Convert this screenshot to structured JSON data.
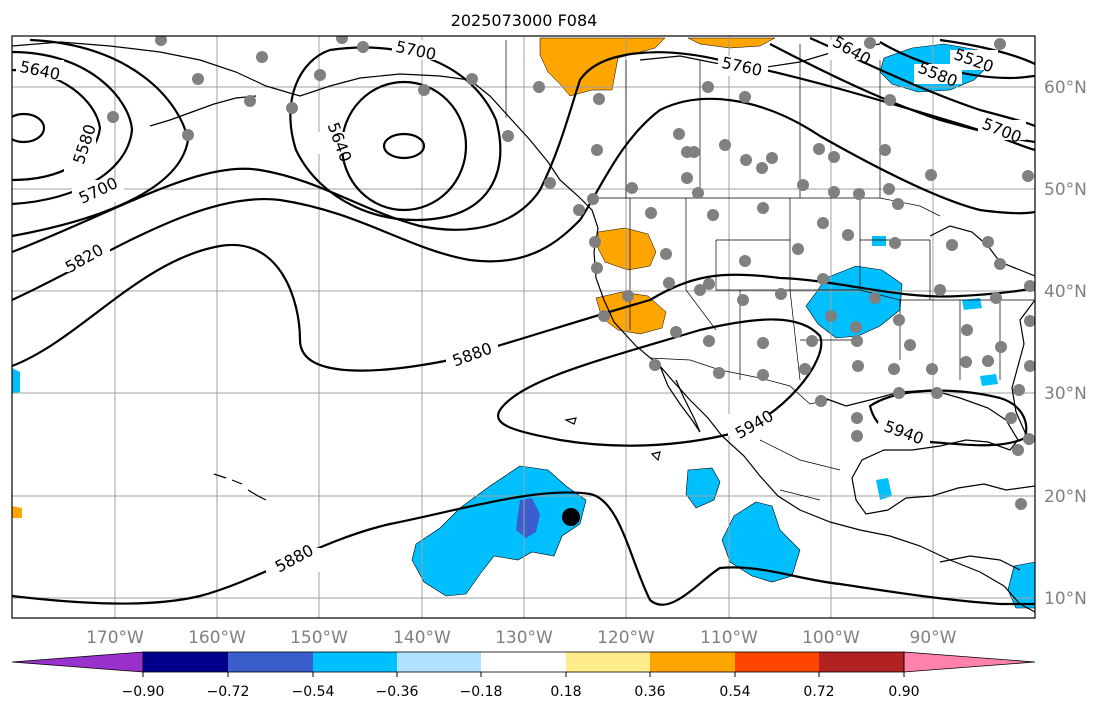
{
  "title": "2025073000 F084",
  "axes": {
    "lon_labels": [
      "170°W",
      "160°W",
      "150°W",
      "140°W",
      "130°W",
      "120°W",
      "110°W",
      "100°W",
      "90°W"
    ],
    "lat_labels": [
      "60°N",
      "50°N",
      "40°N",
      "30°N",
      "20°N",
      "10°N"
    ],
    "lon_range": [
      -180,
      -80
    ],
    "lat_range": [
      8,
      65
    ],
    "grid": true,
    "tick_color": "#808080"
  },
  "colorbar": {
    "tick_labels": [
      "−0.90",
      "−0.72",
      "−0.54",
      "−0.36",
      "−0.18",
      "0.18",
      "0.36",
      "0.54",
      "0.72",
      "0.90"
    ],
    "colors": [
      "#9932CC",
      "#00008B",
      "#3A5FCD",
      "#00BFFF",
      "#B0E2FF",
      "#FFFFFF",
      "#FFEC8B",
      "#FFA500",
      "#FF4500",
      "#B22222",
      "#FF82AB"
    ],
    "extend": "both"
  },
  "contour_labels": {
    "c1": "5640",
    "c2": "5700",
    "c3": "5640",
    "c4": "5760",
    "c5": "5640",
    "c6": "5520",
    "c7": "5580",
    "c8": "5700",
    "c9": "5580",
    "c10": "5700",
    "c11": "5820",
    "c12": "5880",
    "c13": "5940",
    "c14": "5940",
    "c15": "5880"
  },
  "chart_data": {
    "type": "map",
    "title": "2025073000 F084",
    "projection": "plate-carree",
    "lon_range": [
      -180,
      -80
    ],
    "lat_range": [
      8,
      65
    ],
    "contour_levels": [
      5520,
      5580,
      5640,
      5700,
      5760,
      5820,
      5880,
      5940
    ],
    "shading_levels": [
      -0.9,
      -0.72,
      -0.54,
      -0.36,
      -0.18,
      0.18,
      0.36,
      0.54,
      0.72,
      0.9
    ],
    "marker": {
      "lon": -125,
      "lat": 18
    }
  }
}
